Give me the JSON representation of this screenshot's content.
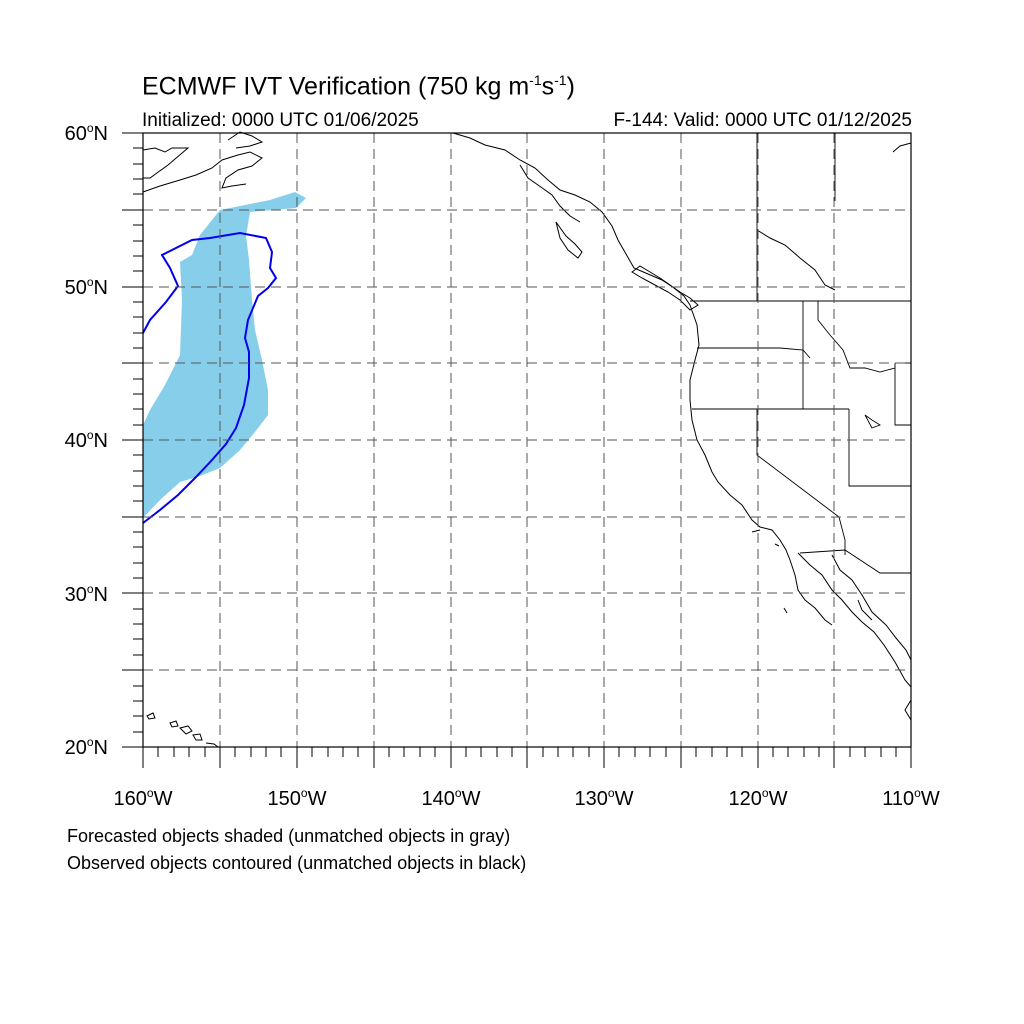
{
  "title": {
    "main": "ECMWF IVT Verification",
    "threshold": "750 kg m",
    "exp1": "-1",
    "unit2": "s",
    "exp2": "-1"
  },
  "init_label": "Initialized: 0000 UTC 01/06/2025",
  "valid_label": "F-144: Valid: 0000 UTC 01/12/2025",
  "lat_labels": [
    {
      "num": "60",
      "hem": "N"
    },
    {
      "num": "50",
      "hem": "N"
    },
    {
      "num": "40",
      "hem": "N"
    },
    {
      "num": "30",
      "hem": "N"
    },
    {
      "num": "20",
      "hem": "N"
    }
  ],
  "lon_labels": [
    {
      "num": "160",
      "hem": "W"
    },
    {
      "num": "150",
      "hem": "W"
    },
    {
      "num": "140",
      "hem": "W"
    },
    {
      "num": "130",
      "hem": "W"
    },
    {
      "num": "120",
      "hem": "W"
    },
    {
      "num": "110",
      "hem": "W"
    }
  ],
  "notes": [
    "Forecasted objects shaded (unmatched objects in gray)",
    "Observed objects contoured (unmatched objects in black)"
  ],
  "map": {
    "lon_range": [
      -160,
      -110
    ],
    "lat_range": [
      20,
      60
    ],
    "grid_interval_deg": 5,
    "forecast_fill_color": "#87ceeb",
    "observed_contour_color": "#0000ee",
    "coastline_color": "#000000"
  }
}
